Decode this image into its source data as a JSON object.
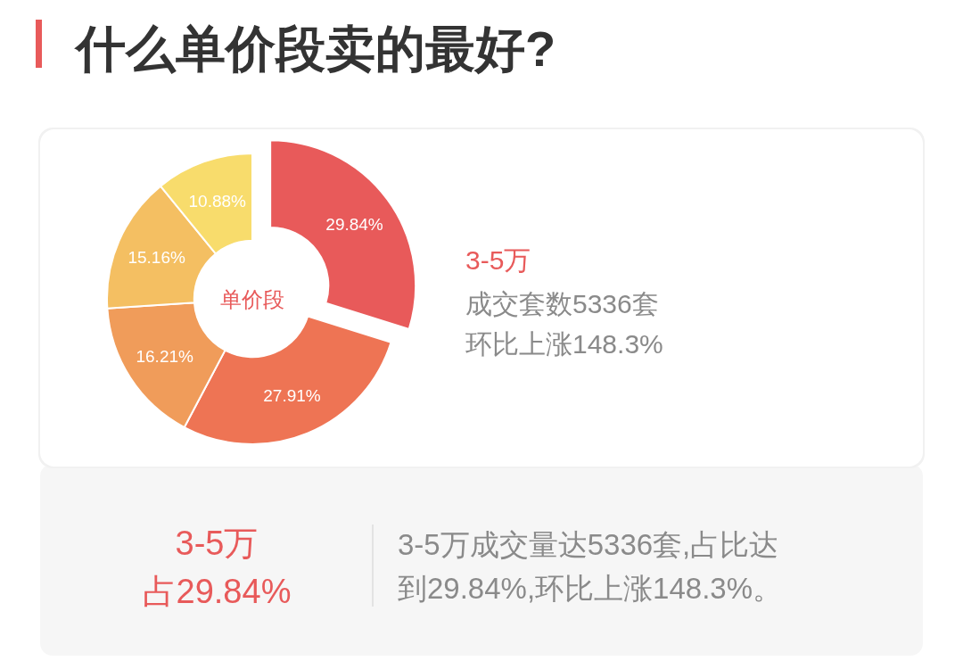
{
  "chart_data": {
    "type": "donut",
    "title": "什么单价段卖的最好?",
    "categories": [
      null,
      null,
      null,
      null,
      null
    ],
    "values": [
      29.84,
      27.91,
      16.21,
      15.16,
      10.88
    ],
    "colors": [
      "#e85a5a",
      "#ee7454",
      "#f09c5a",
      "#f4bf62",
      "#f8dc6c"
    ],
    "value_labels": [
      "29.84%",
      "27.91%",
      "16.21%",
      "15.16%",
      "10.88%"
    ],
    "annotations": [
      "单价段",
      "3-5万",
      "成交套数5336套",
      "环比上涨148.3%",
      "3-5万",
      "占29.84%",
      "3-5万成交量达5336套,占比达到29.84%,环比上涨148.3%。"
    ]
  }
}
